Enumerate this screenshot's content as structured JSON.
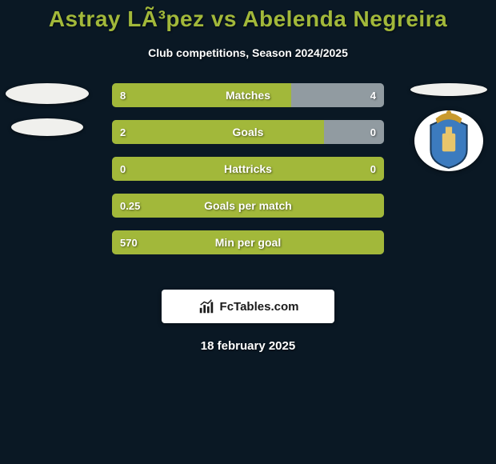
{
  "background_color": "#0a1824",
  "title_color": "#a2b83a",
  "text_color": "#ffffff",
  "title": "Astray LÃ³pez vs Abelenda Negreira",
  "subtitle": "Club competitions, Season 2024/2025",
  "date": "18 february 2025",
  "attribution": "FcTables.com",
  "left_fill": "#a2b83a",
  "right_fill": "#919ba1",
  "track_fill": "#4a565f",
  "bars": [
    {
      "label": "Matches",
      "left_val": "8",
      "right_val": "4",
      "left_pct": 66,
      "right_pct": 34
    },
    {
      "label": "Goals",
      "left_val": "2",
      "right_val": "0",
      "left_pct": 78,
      "right_pct": 22
    },
    {
      "label": "Hattricks",
      "left_val": "0",
      "right_val": "0",
      "left_pct": 100,
      "right_pct": 0
    },
    {
      "label": "Goals per match",
      "left_val": "0.25",
      "right_val": "",
      "left_pct": 100,
      "right_pct": 0
    },
    {
      "label": "Min per goal",
      "left_val": "570",
      "right_val": "",
      "left_pct": 100,
      "right_pct": 0
    }
  ],
  "left_logo": {
    "type": "placeholder-ellipses"
  },
  "right_logo": {
    "type": "crest",
    "shield_fill": "#3c7bbf",
    "shield_stroke": "#1a3a5c",
    "center_fill": "#e8c56b",
    "crown_fill": "#c99a2e"
  }
}
